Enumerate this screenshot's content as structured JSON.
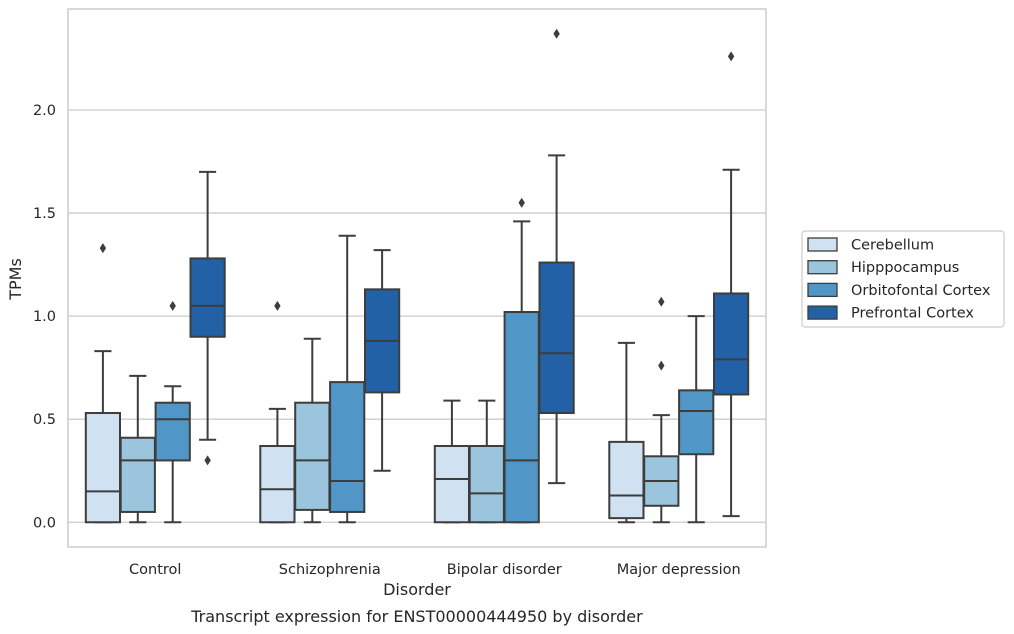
{
  "chart_data": {
    "type": "box",
    "title": "",
    "caption": "Transcript expression for ENST00000444950 by disorder",
    "xlabel": "Disorder",
    "ylabel": "TPMs",
    "ylim": [
      -0.12,
      2.49
    ],
    "yticks": [
      "0.0",
      "0.5",
      "1.0",
      "1.5",
      "2.0"
    ],
    "grid": true,
    "legend_position": "right",
    "categories": [
      "Control",
      "Schizophrenia",
      "Bipolar disorder",
      "Major depression"
    ],
    "series": [
      {
        "name": "Cerebellum",
        "color": "#d0e1f2",
        "boxes": [
          {
            "whisker_low": 0.0,
            "q1": 0.0,
            "median": 0.15,
            "q3": 0.53,
            "whisker_high": 0.83,
            "outliers": [
              1.33
            ]
          },
          {
            "whisker_low": 0.0,
            "q1": 0.0,
            "median": 0.16,
            "q3": 0.37,
            "whisker_high": 0.55,
            "outliers": [
              1.05
            ]
          },
          {
            "whisker_low": 0.0,
            "q1": 0.0,
            "median": 0.21,
            "q3": 0.37,
            "whisker_high": 0.59,
            "outliers": []
          },
          {
            "whisker_low": 0.0,
            "q1": 0.02,
            "median": 0.13,
            "q3": 0.39,
            "whisker_high": 0.87,
            "outliers": []
          }
        ]
      },
      {
        "name": "Hipppocampus",
        "color": "#9ac5dc",
        "boxes": [
          {
            "whisker_low": 0.0,
            "q1": 0.05,
            "median": 0.3,
            "q3": 0.41,
            "whisker_high": 0.71,
            "outliers": []
          },
          {
            "whisker_low": 0.0,
            "q1": 0.06,
            "median": 0.3,
            "q3": 0.58,
            "whisker_high": 0.89,
            "outliers": []
          },
          {
            "whisker_low": 0.0,
            "q1": 0.0,
            "median": 0.14,
            "q3": 0.37,
            "whisker_high": 0.59,
            "outliers": []
          },
          {
            "whisker_low": 0.0,
            "q1": 0.08,
            "median": 0.2,
            "q3": 0.32,
            "whisker_high": 0.52,
            "outliers": [
              0.76,
              1.07
            ]
          }
        ]
      },
      {
        "name": "Orbitofontal Cortex",
        "color": "#5096c6",
        "boxes": [
          {
            "whisker_low": 0.0,
            "q1": 0.3,
            "median": 0.5,
            "q3": 0.58,
            "whisker_high": 0.66,
            "outliers": [
              1.05
            ]
          },
          {
            "whisker_low": 0.0,
            "q1": 0.05,
            "median": 0.2,
            "q3": 0.68,
            "whisker_high": 1.39,
            "outliers": []
          },
          {
            "whisker_low": 0.0,
            "q1": 0.0,
            "median": 0.3,
            "q3": 1.02,
            "whisker_high": 1.46,
            "outliers": [
              1.55
            ]
          },
          {
            "whisker_low": 0.0,
            "q1": 0.33,
            "median": 0.54,
            "q3": 0.64,
            "whisker_high": 1.0,
            "outliers": []
          }
        ]
      },
      {
        "name": "Prefrontal Cortex",
        "color": "#2261a6",
        "boxes": [
          {
            "whisker_low": 0.4,
            "q1": 0.9,
            "median": 1.05,
            "q3": 1.28,
            "whisker_high": 1.7,
            "outliers": [
              0.3
            ]
          },
          {
            "whisker_low": 0.25,
            "q1": 0.63,
            "median": 0.88,
            "q3": 1.13,
            "whisker_high": 1.32,
            "outliers": []
          },
          {
            "whisker_low": 0.19,
            "q1": 0.53,
            "median": 0.82,
            "q3": 1.26,
            "whisker_high": 1.78,
            "outliers": [
              2.37
            ]
          },
          {
            "whisker_low": 0.03,
            "q1": 0.62,
            "median": 0.79,
            "q3": 1.11,
            "whisker_high": 1.71,
            "outliers": [
              2.26
            ]
          }
        ]
      }
    ]
  }
}
